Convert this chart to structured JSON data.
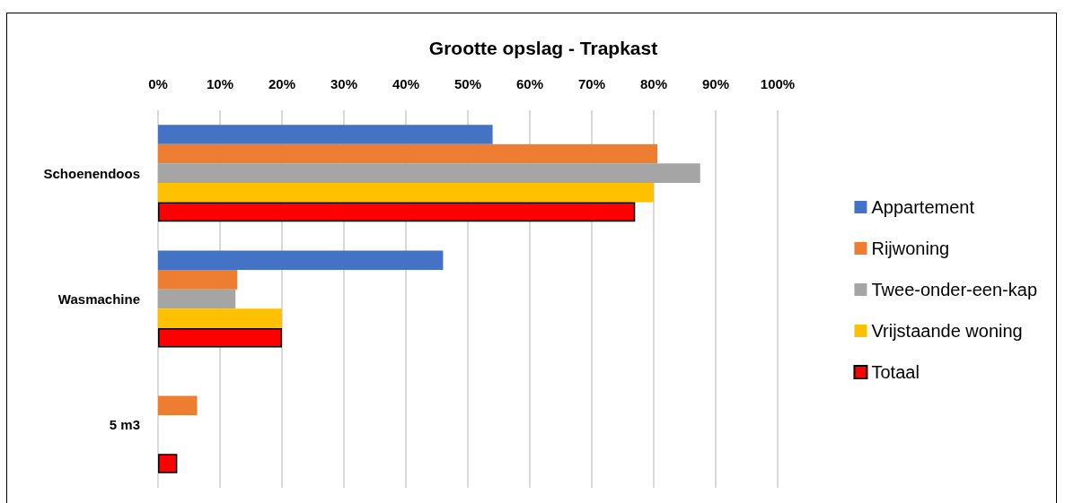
{
  "chart_data": {
    "type": "bar",
    "orientation": "horizontal",
    "title": "Grootte opslag - Trapkast",
    "categories": [
      "Schoenendoos",
      "Wasmachine",
      "5 m3"
    ],
    "series": [
      {
        "name": "Appartement",
        "color": "#4472c4",
        "values": [
          54,
          46,
          0
        ]
      },
      {
        "name": "Rijwoning",
        "color": "#ed7d31",
        "values": [
          80.6,
          12.8,
          6.3
        ]
      },
      {
        "name": "Twee-onder-een-kap",
        "color": "#a5a5a5",
        "values": [
          87.5,
          12.5,
          0
        ]
      },
      {
        "name": "Vrijstaande woning",
        "color": "#ffc000",
        "values": [
          80,
          20,
          0
        ]
      },
      {
        "name": "Totaal",
        "color": "#ff0000",
        "values": [
          77,
          20,
          3.1
        ]
      }
    ],
    "xlim": [
      0,
      100
    ],
    "xticks": [
      {
        "value": 0,
        "label": "0%"
      },
      {
        "value": 10,
        "label": "10%"
      },
      {
        "value": 20,
        "label": "20%"
      },
      {
        "value": 30,
        "label": "30%"
      },
      {
        "value": 40,
        "label": "40%"
      },
      {
        "value": 50,
        "label": "50%"
      },
      {
        "value": 60,
        "label": "60%"
      },
      {
        "value": 70,
        "label": "70%"
      },
      {
        "value": 80,
        "label": "80%"
      },
      {
        "value": 90,
        "label": "90%"
      },
      {
        "value": 100,
        "label": "100%"
      }
    ],
    "grid": "x",
    "legend": "right"
  }
}
